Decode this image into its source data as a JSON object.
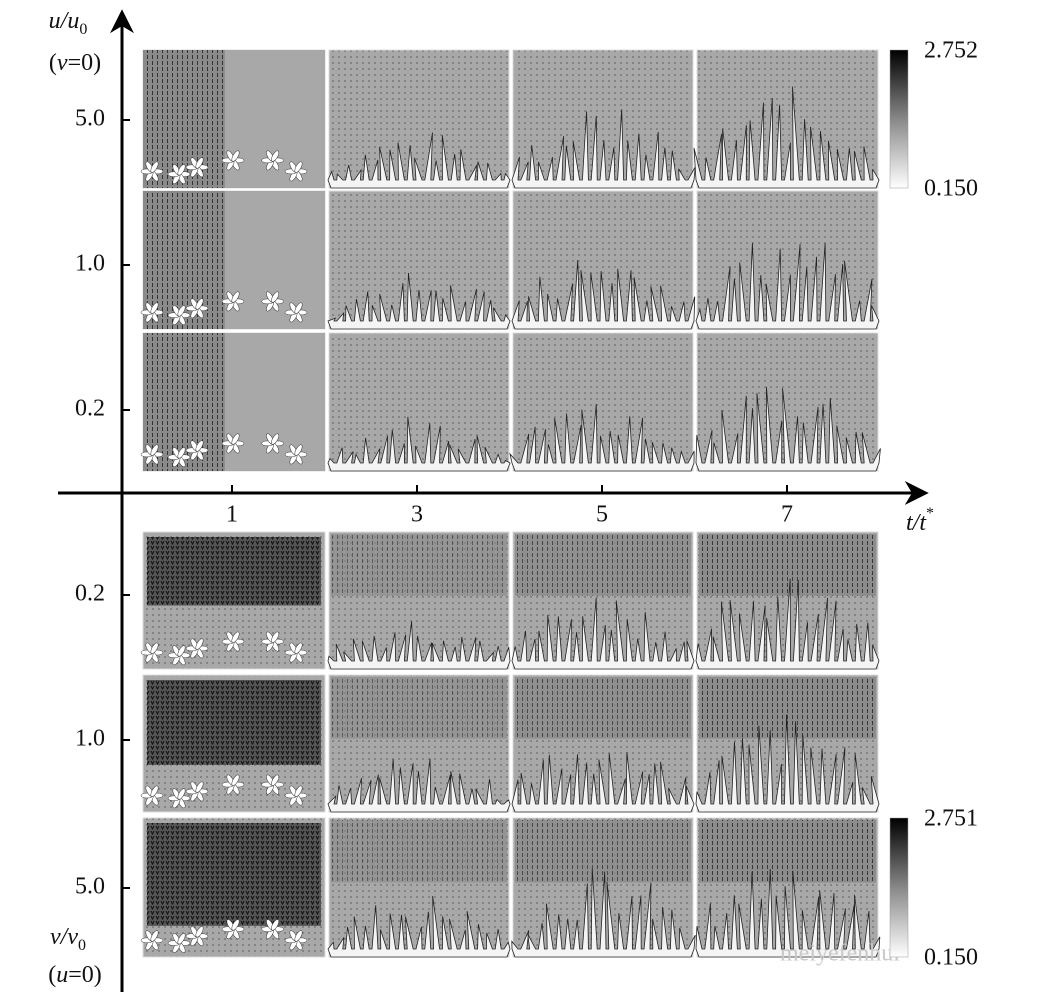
{
  "y_axis_top": {
    "label_main": "u/u",
    "label_sub": "0",
    "condition_open": "(",
    "condition_var": "v",
    "condition_rest": "=0)",
    "ticks": [
      "5.0",
      "1.0",
      "0.2"
    ]
  },
  "x_axis": {
    "label_main": "t/t",
    "label_sup": "*",
    "ticks": [
      "1",
      "3",
      "5",
      "7"
    ]
  },
  "y_axis_bottom": {
    "label_main": "v/v",
    "label_sub": "0",
    "condition_open": "(",
    "condition_var": "u",
    "condition_rest": "=0)",
    "ticks": [
      "0.2",
      "1.0",
      "5.0"
    ]
  },
  "colorbars": [
    {
      "max": "2.752",
      "min": "0.150"
    },
    {
      "max": "2.751",
      "min": "0.150"
    }
  ],
  "watermark": "meiyefenhui"
}
